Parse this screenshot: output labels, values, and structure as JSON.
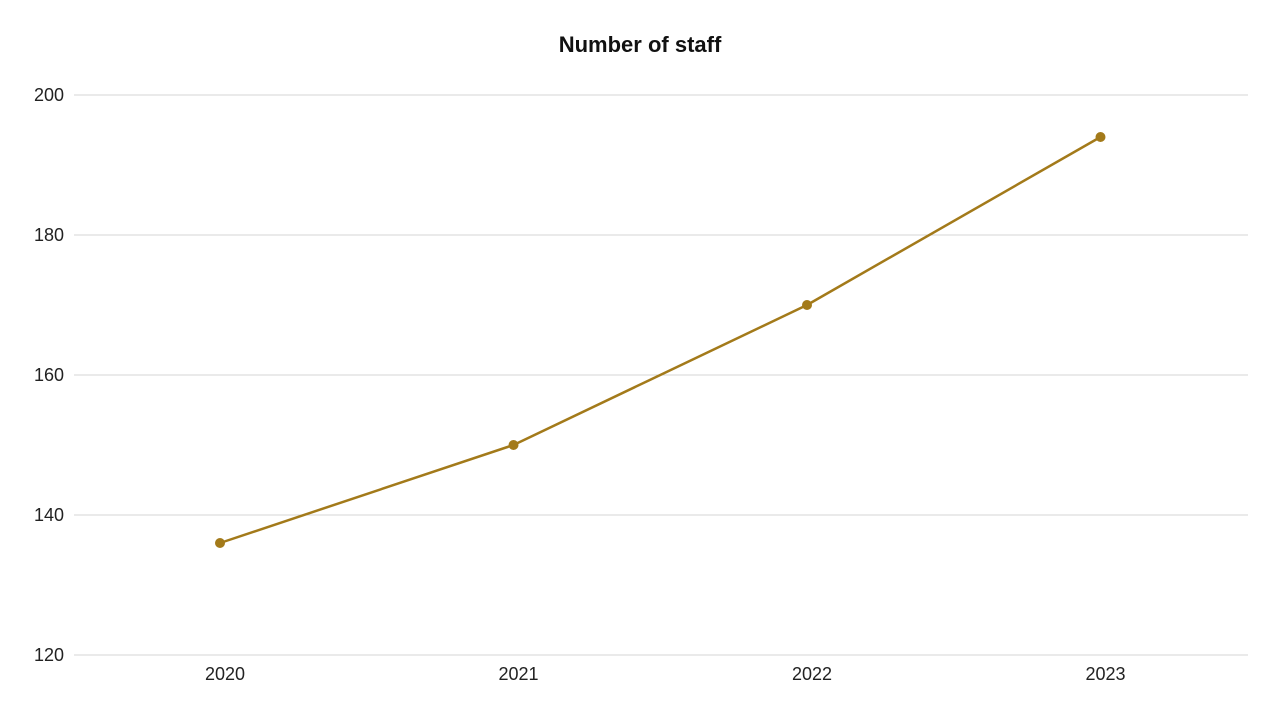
{
  "chart_data": {
    "type": "line",
    "title": "Number of staff",
    "xlabel": "",
    "ylabel": "",
    "categories": [
      "2020",
      "2021",
      "2022",
      "2023"
    ],
    "series": [
      {
        "values": [
          136,
          150,
          170,
          194
        ]
      }
    ],
    "ylim": [
      120,
      200
    ],
    "yticks": [
      120,
      140,
      160,
      180,
      200
    ],
    "grid": true,
    "legend": "none",
    "colors": {
      "line": "#a37a1a",
      "grid": "#d4d4d4",
      "text": "#222222"
    }
  }
}
